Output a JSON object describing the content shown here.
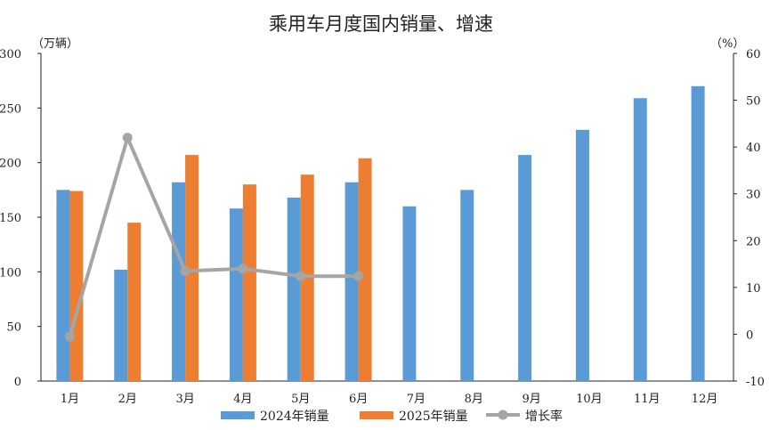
{
  "chart_data": {
    "type": "bar",
    "title": "乘用车月度国内销量、增速",
    "left_unit": "（万辆）",
    "right_unit": "（%）",
    "categories": [
      "1月",
      "2月",
      "3月",
      "4月",
      "5月",
      "6月",
      "7月",
      "8月",
      "9月",
      "10月",
      "11月",
      "12月"
    ],
    "series": [
      {
        "name": "2024年销量",
        "kind": "bar",
        "axis": "left",
        "color": "#5b9bd5",
        "values": [
          175,
          102,
          182,
          158,
          168,
          182,
          160,
          175,
          207,
          230,
          259,
          270
        ]
      },
      {
        "name": "2025年销量",
        "kind": "bar",
        "axis": "left",
        "color": "#ed7d31",
        "values": [
          174,
          145,
          207,
          180,
          189,
          204,
          null,
          null,
          null,
          null,
          null,
          null
        ]
      },
      {
        "name": "增长率",
        "kind": "line",
        "axis": "right",
        "color": "#a5a5a5",
        "values": [
          -0.5,
          42,
          13.5,
          14,
          12.4,
          12.4,
          null,
          null,
          null,
          null,
          null,
          null
        ]
      }
    ],
    "left_axis": {
      "ylim": [
        0,
        300
      ],
      "ticks": [
        "0",
        "50",
        "100",
        "150",
        "200",
        "250",
        "300"
      ]
    },
    "right_axis": {
      "ylim": [
        -10,
        60
      ],
      "ticks": [
        "-10",
        "0",
        "10",
        "20",
        "30",
        "40",
        "50",
        "60"
      ],
      "negative_color": "#ff0000"
    },
    "legend_position": "bottom",
    "grid": false
  }
}
